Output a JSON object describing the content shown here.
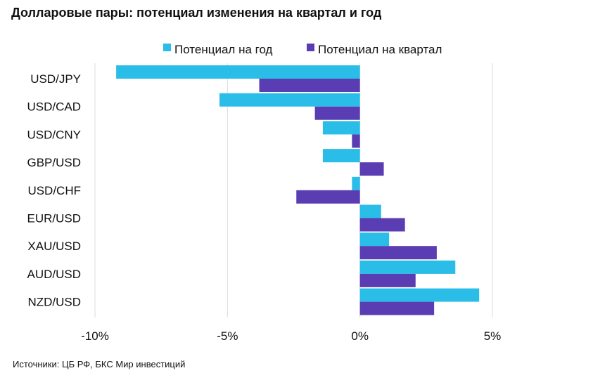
{
  "chart_data": {
    "type": "bar",
    "orientation": "horizontal",
    "title": "Долларовые пары: потенциал изменения на квартал и год",
    "categories": [
      "USD/JPY",
      "USD/CAD",
      "USD/CNY",
      "GBP/USD",
      "USD/CHF",
      "EUR/USD",
      "XAU/USD",
      "AUD/USD",
      "NZD/USD"
    ],
    "series": [
      {
        "name": "Потенциал на год",
        "color": "#29bde8",
        "values": [
          -9.2,
          -5.3,
          -1.4,
          -1.4,
          -0.3,
          0.8,
          1.1,
          3.6,
          4.5
        ]
      },
      {
        "name": "Потенциал на квартал",
        "color": "#5b3db3",
        "values": [
          -3.8,
          -1.7,
          -0.3,
          0.9,
          -2.4,
          1.7,
          2.9,
          2.1,
          2.8
        ]
      }
    ],
    "xlim": [
      -10,
      5
    ],
    "xticks": [
      -10,
      -5,
      0,
      5
    ],
    "xtick_labels": [
      "-10%",
      "-5%",
      "0%",
      "5%"
    ],
    "grid": true,
    "legend_position": "top-center"
  },
  "source": "Источники: ЦБ РФ, БКС Мир инвестиций"
}
